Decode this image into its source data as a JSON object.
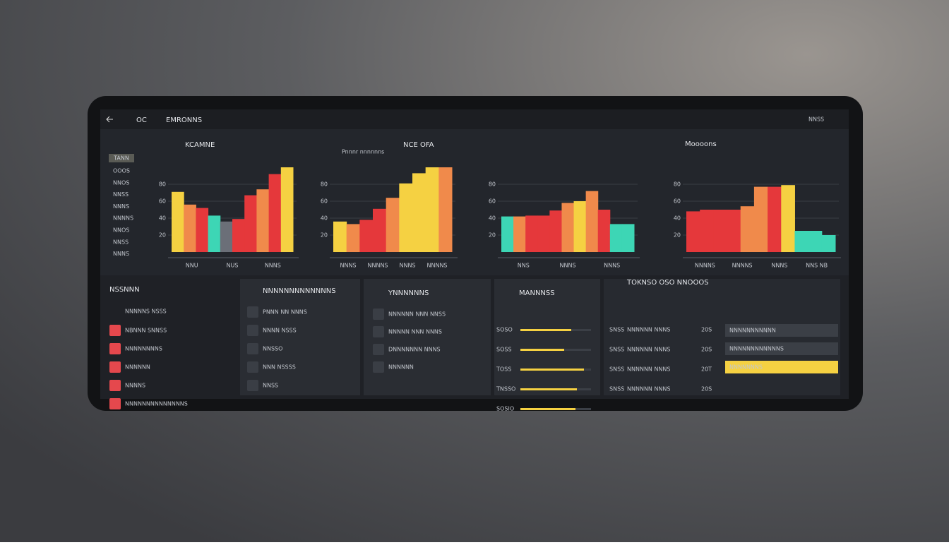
{
  "header": {
    "search": "OC",
    "title": "EMRONNS",
    "right": "NNSS"
  },
  "sidebar": {
    "tag": "TANN",
    "items": [
      "OOOS",
      "NNOS",
      "NNSS",
      "NNNS",
      "NNNNS",
      "NNOS",
      "NNSS",
      "NNNS"
    ]
  },
  "charts": [
    {
      "type": "bar",
      "title": "KCAMNE",
      "ylim": [
        0,
        100
      ],
      "yticks": [
        20,
        40,
        60,
        80
      ],
      "values": [
        71,
        56,
        52,
        43,
        36,
        39,
        67,
        74,
        92,
        100
      ],
      "colors": [
        "#f5d142",
        "#f08a4b",
        "#e5383b",
        "#3dd6b5",
        "#6b6f78",
        "#e5383b",
        "#e5383b",
        "#f08a4b",
        "#e5383b",
        "#f5d142"
      ],
      "categories": [
        "NNU",
        "NUS",
        "NNNS"
      ]
    },
    {
      "type": "bar",
      "title": "NCE OFA",
      "subtitle": "Pnnnr nnnnnns",
      "ylim": [
        0,
        100
      ],
      "yticks": [
        20,
        40,
        60,
        80
      ],
      "values": [
        36,
        33,
        38,
        51,
        64,
        81,
        93,
        100,
        100
      ],
      "colors": [
        "#f5d142",
        "#f08a4b",
        "#e5383b",
        "#e5383b",
        "#f08a4b",
        "#f5d142",
        "#f5d142",
        "#f5d142",
        "#f08a4b"
      ],
      "categories": [
        "NNNS",
        "NNNNS",
        "NNNS",
        "NNNNS"
      ]
    },
    {
      "type": "bar",
      "title": "Moooons",
      "ylim": [
        0,
        100
      ],
      "yticks": [
        20,
        40,
        60,
        80
      ],
      "values": [
        42,
        42,
        43,
        43,
        49,
        58,
        60,
        72,
        50,
        33,
        33
      ],
      "colors": [
        "#3dd6b5",
        "#f08a4b",
        "#e5383b",
        "#e5383b",
        "#e5383b",
        "#f08a4b",
        "#f5d142",
        "#f08a4b",
        "#e5383b",
        "#3dd6b5",
        "#3dd6b5"
      ],
      "categories": [
        "NNS",
        "NNNS",
        "NNNS"
      ]
    },
    {
      "type": "bar",
      "ylim": [
        0,
        100
      ],
      "yticks": [
        20,
        40,
        60,
        80
      ],
      "values": [
        48,
        50,
        50,
        50,
        54,
        77,
        77,
        79,
        25,
        25,
        20
      ],
      "colors": [
        "#e5383b",
        "#e5383b",
        "#e5383b",
        "#e5383b",
        "#f08a4b",
        "#f08a4b",
        "#e5383b",
        "#f5d142",
        "#3dd6b5",
        "#3dd6b5",
        "#3dd6b5"
      ],
      "categories": [
        "NNNNS",
        "NNNNS",
        "NNNS",
        "NNS NB"
      ]
    }
  ],
  "lists": [
    {
      "title": "NSSNNN",
      "subtitle": "NNNNNS NSSS",
      "items": [
        "NBNNN SNNSS",
        "NNNNNNNNS",
        "NNNNNN",
        "NNNNS",
        "NNNNNNNNNNNNNNS"
      ]
    },
    {
      "title": "NNNNNNNNNNNNNS",
      "items": [
        "PNNN NN NNNS",
        "NNNN NSSS",
        "NNSSO",
        "NNN NSSSS",
        "NNSS"
      ]
    },
    {
      "title": "YNNNNNNS",
      "items": [
        "NNNNNN NNN NNSS",
        "NNNNN NNN NNNS",
        "DNNNNNNN NNNS",
        "NNNNNN"
      ]
    }
  ],
  "progress": {
    "title": "MANNNSS",
    "xlim": [
      0,
      100
    ],
    "rows": [
      {
        "label": "SOSO",
        "value": 72
      },
      {
        "label": "SOSS",
        "value": 62
      },
      {
        "label": "TOSS",
        "value": 90
      },
      {
        "label": "TNSSO",
        "value": 80
      },
      {
        "label": "SOSIO",
        "value": 78
      }
    ]
  },
  "table": {
    "title": "TOKNSO OSO NNOOOS",
    "rows": [
      [
        "SNSS",
        "NNNNNN NNNS",
        "20S"
      ],
      [
        "SNSS",
        "NNNNNN NNNS",
        "20S"
      ],
      [
        "SNSS",
        "NNNNNN NNNS",
        "20T"
      ],
      [
        "SNSS",
        "NNNNNN NNNS",
        "20S"
      ]
    ],
    "side": [
      "NNNNNNNNNNN",
      "NNNNNNNNNNNNS",
      "NNNNNNNS"
    ]
  }
}
